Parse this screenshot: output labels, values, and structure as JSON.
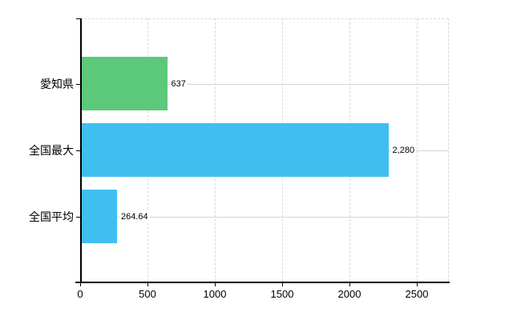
{
  "chart_data": {
    "type": "bar",
    "orientation": "horizontal",
    "title": "",
    "xlabel": "",
    "ylabel": "",
    "legend": "none",
    "grid": true,
    "categories": [
      "愛知県",
      "全国最大",
      "全国平均"
    ],
    "values": [
      637,
      2280,
      264.64
    ],
    "value_labels": [
      "637",
      "2,280",
      "264.64"
    ],
    "bar_colors": [
      "#5cc87a",
      "#3fbff0",
      "#3fbff0"
    ],
    "x_ticks": [
      0,
      500,
      1000,
      1500,
      2000,
      2500
    ],
    "x_tick_labels": [
      "0",
      "500",
      "1000",
      "1500",
      "2000",
      "2500"
    ],
    "xlim": [
      0,
      2732
    ]
  },
  "colors": {
    "axis": "#000000",
    "grid_solid": "#d4d4d4",
    "grid_dashed": "#d9d9d9",
    "text": "#000000",
    "background": "#ffffff"
  }
}
